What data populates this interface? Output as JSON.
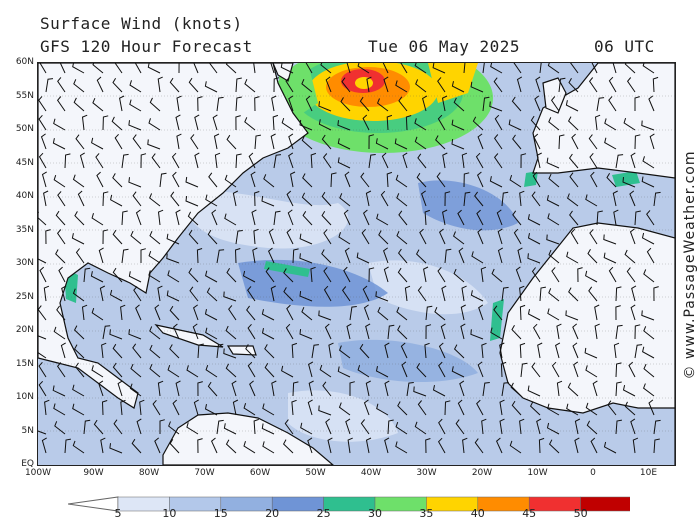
{
  "title": "Surface Wind (knots)",
  "subtitle": "GFS 120 Hour Forecast",
  "date": "Tue 06 May 2025",
  "time": "06 UTC",
  "copyright": "© www.PassageWeather.com",
  "lat_labels": [
    "60N",
    "55N",
    "50N",
    "45N",
    "40N",
    "35N",
    "30N",
    "25N",
    "20N",
    "15N",
    "10N",
    "5N",
    "EQ"
  ],
  "lon_labels": [
    "100W",
    "90W",
    "80W",
    "70W",
    "60W",
    "50W",
    "40W",
    "30W",
    "20W",
    "10W",
    "0",
    "10E"
  ],
  "colorbar": {
    "labels": [
      "5",
      "10",
      "15",
      "20",
      "25",
      "30",
      "35",
      "40",
      "45",
      "50"
    ],
    "colors": [
      "#dde6f6",
      "#b3c8ea",
      "#92b0e0",
      "#6f94d6",
      "#2fbf8f",
      "#6ee06a",
      "#ffd400",
      "#ff8c00",
      "#f03030",
      "#c00000",
      "#c000c0"
    ]
  },
  "map_colors": {
    "ocean_base": "#b9cbe9",
    "land": "#f4f6fb",
    "light": "#dde6f6",
    "medium": "#92b0e0",
    "strong": "#6f94d6",
    "green": "#6ee06a",
    "teal": "#2fbf8f",
    "yellow": "#ffd400",
    "orange": "#ff8c00",
    "red": "#f03030"
  }
}
